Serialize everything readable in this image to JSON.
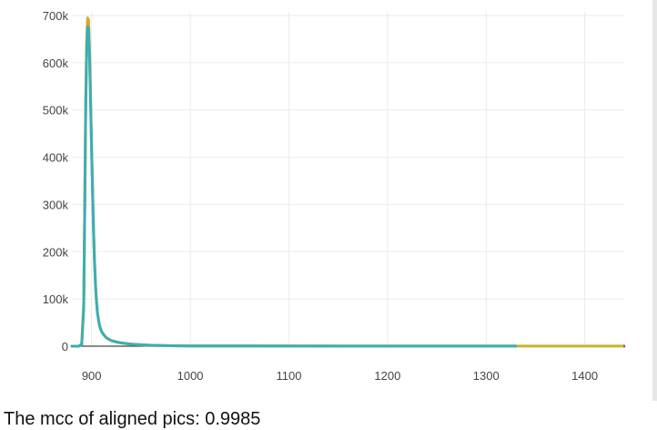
{
  "chart_data": {
    "type": "line",
    "title": "",
    "xlabel": "",
    "ylabel": "",
    "xlim": [
      880,
      1440
    ],
    "ylim": [
      0,
      700000
    ],
    "xticks": [
      {
        "value": 900,
        "label": "900"
      },
      {
        "value": 1000,
        "label": "1000"
      },
      {
        "value": 1100,
        "label": "1100"
      },
      {
        "value": 1200,
        "label": "1200"
      },
      {
        "value": 1300,
        "label": "1300"
      },
      {
        "value": 1400,
        "label": "1400"
      }
    ],
    "yticks": [
      {
        "value": 0,
        "label": "0"
      },
      {
        "value": 100000,
        "label": "100k"
      },
      {
        "value": 200000,
        "label": "200k"
      },
      {
        "value": 300000,
        "label": "300k"
      },
      {
        "value": 400000,
        "label": "400k"
      },
      {
        "value": 500000,
        "label": "500k"
      },
      {
        "value": 600000,
        "label": "600k"
      },
      {
        "value": 700000,
        "label": "700k"
      }
    ],
    "grid": true,
    "legend": "none",
    "series": [
      {
        "color": "#c8b42a",
        "x": [
          880,
          887,
          890,
          892,
          893,
          894,
          895,
          896,
          897,
          898,
          899,
          900,
          901,
          902,
          903,
          904,
          905,
          906,
          908,
          910,
          912,
          915,
          920,
          925,
          930,
          940,
          950,
          960,
          970,
          980,
          1000,
          1100,
          1200,
          1300,
          1330,
          1440
        ],
        "y": [
          0,
          0,
          5000,
          90000,
          300000,
          520000,
          650000,
          695000,
          690000,
          620000,
          520000,
          420000,
          330000,
          250000,
          180000,
          130000,
          95000,
          70000,
          45000,
          32000,
          25000,
          18000,
          12000,
          9000,
          7000,
          4500,
          3000,
          2000,
          1400,
          1000,
          600,
          300,
          200,
          150,
          120,
          100
        ]
      },
      {
        "color": "#e8a030",
        "x": [
          880,
          887,
          890,
          892,
          893,
          894,
          895,
          896,
          897,
          898,
          899,
          900,
          901,
          902,
          903,
          904,
          905,
          906,
          908,
          910,
          912,
          915,
          920,
          925,
          930,
          940,
          950,
          960,
          970,
          980,
          1000,
          1100,
          1200,
          1300,
          1330
        ],
        "y": [
          0,
          0,
          4000,
          85000,
          290000,
          510000,
          640000,
          688000,
          684000,
          615000,
          515000,
          415000,
          326000,
          247000,
          178000,
          128000,
          94000,
          69000,
          44500,
          31500,
          24700,
          17800,
          11900,
          8900,
          6900,
          4400,
          2950,
          1950,
          1380,
          990,
          590,
          290,
          190,
          140,
          110
        ]
      },
      {
        "color": "#3aafb5",
        "x": [
          880,
          887,
          890,
          892,
          893,
          894,
          895,
          896,
          897,
          898,
          899,
          900,
          901,
          902,
          903,
          904,
          905,
          906,
          908,
          910,
          912,
          915,
          920,
          925,
          930,
          940,
          950,
          960,
          970,
          980,
          1000,
          1100,
          1200,
          1300,
          1330
        ],
        "y": [
          0,
          0,
          3000,
          80000,
          280000,
          500000,
          630000,
          676000,
          672000,
          605000,
          510000,
          410000,
          322000,
          244000,
          176000,
          126000,
          93000,
          68000,
          44000,
          31000,
          24500,
          17600,
          11800,
          8800,
          6800,
          4300,
          2900,
          1900,
          1350,
          980,
          580,
          280,
          180,
          130,
          100
        ]
      }
    ]
  },
  "caption": {
    "text": "The mcc of aligned pics: 0.9985"
  }
}
